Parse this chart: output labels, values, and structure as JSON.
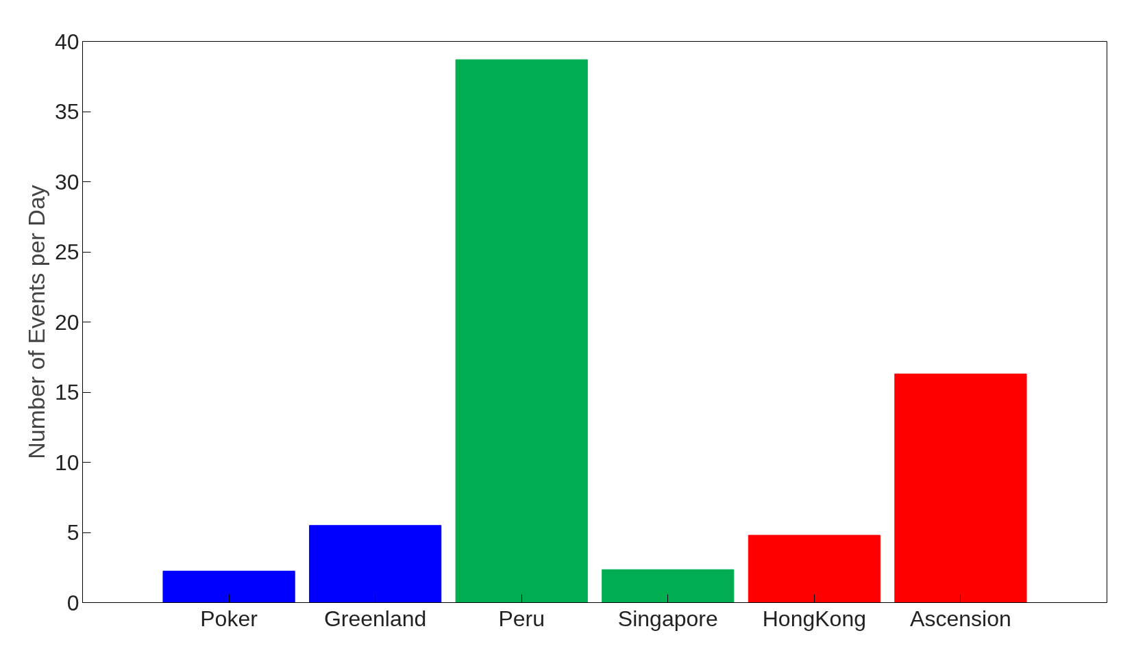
{
  "chart_data": {
    "type": "bar",
    "ylabel": "Number of Events per Day",
    "categories": [
      "Poker",
      "Greenland",
      "Peru",
      "Singapore",
      "HongKong",
      "Ascension"
    ],
    "values": [
      2.25,
      5.5,
      38.7,
      2.35,
      4.8,
      16.3
    ],
    "colors": [
      "#0000ff",
      "#0000ff",
      "#00ad50",
      "#00ad50",
      "#ff0000",
      "#ff0000"
    ],
    "ylim": [
      0,
      40
    ],
    "yticks": [
      0,
      5,
      10,
      15,
      20,
      25,
      30,
      35,
      40
    ],
    "grid": false
  }
}
